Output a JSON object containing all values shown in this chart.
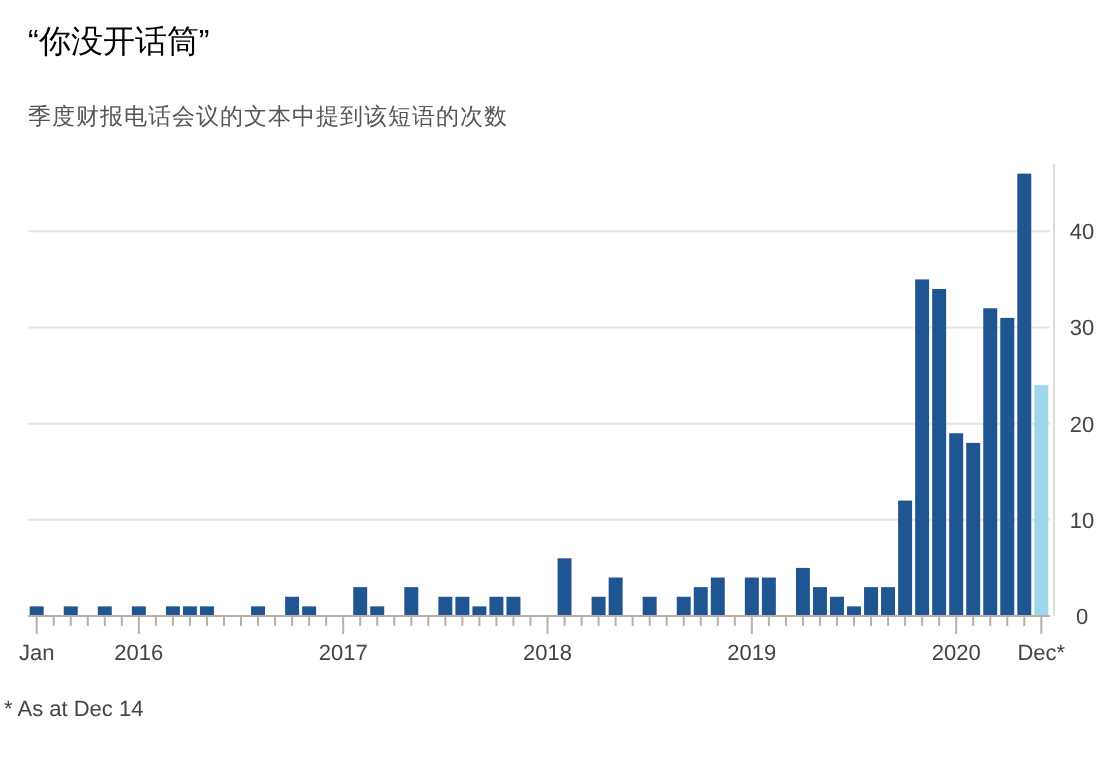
{
  "chart_data": {
    "type": "bar",
    "title": "“你没开话筒”",
    "subtitle": "季度财报电话会议的文本中提到该短语的次数",
    "categories": [
      "Jan",
      null,
      null,
      null,
      null,
      null,
      "2016",
      null,
      null,
      null,
      null,
      null,
      null,
      null,
      null,
      null,
      null,
      null,
      "2017",
      null,
      null,
      null,
      null,
      null,
      null,
      null,
      null,
      null,
      null,
      null,
      "2018",
      null,
      null,
      null,
      null,
      null,
      null,
      null,
      null,
      null,
      null,
      null,
      "2019",
      null,
      null,
      null,
      null,
      null,
      null,
      null,
      null,
      null,
      null,
      null,
      "2020",
      null,
      null,
      null,
      null,
      "Dec*"
    ],
    "values": [
      1,
      0,
      1,
      0,
      1,
      0,
      1,
      0,
      1,
      1,
      1,
      0,
      0,
      1,
      0,
      2,
      1,
      0,
      0,
      3,
      1,
      0,
      3,
      0,
      2,
      2,
      1,
      2,
      2,
      0,
      0,
      6,
      0,
      2,
      4,
      0,
      2,
      0,
      2,
      3,
      4,
      0,
      4,
      4,
      0,
      5,
      3,
      2,
      1,
      3,
      3,
      12,
      35,
      34,
      19,
      18,
      32,
      31,
      46,
      24
    ],
    "colors": [
      "#1f5591",
      "#1f5591",
      "#1f5591",
      "#1f5591",
      "#1f5591",
      "#1f5591",
      "#1f5591",
      "#1f5591",
      "#1f5591",
      "#1f5591",
      "#1f5591",
      "#1f5591",
      "#1f5591",
      "#1f5591",
      "#1f5591",
      "#1f5591",
      "#1f5591",
      "#1f5591",
      "#1f5591",
      "#1f5591",
      "#1f5591",
      "#1f5591",
      "#1f5591",
      "#1f5591",
      "#1f5591",
      "#1f5591",
      "#1f5591",
      "#1f5591",
      "#1f5591",
      "#1f5591",
      "#1f5591",
      "#1f5591",
      "#1f5591",
      "#1f5591",
      "#1f5591",
      "#1f5591",
      "#1f5591",
      "#1f5591",
      "#1f5591",
      "#1f5591",
      "#1f5591",
      "#1f5591",
      "#1f5591",
      "#1f5591",
      "#1f5591",
      "#1f5591",
      "#1f5591",
      "#1f5591",
      "#1f5591",
      "#1f5591",
      "#1f5591",
      "#1f5591",
      "#1f5591",
      "#1f5591",
      "#1f5591",
      "#1f5591",
      "#1f5591",
      "#1f5591",
      "#1f5591",
      "#9fd8ec"
    ],
    "ylim": [
      0,
      47
    ],
    "yticks": [
      0,
      10,
      20,
      30,
      40
    ],
    "grid": "y",
    "annotations": [
      "* As at Dec 14"
    ]
  }
}
